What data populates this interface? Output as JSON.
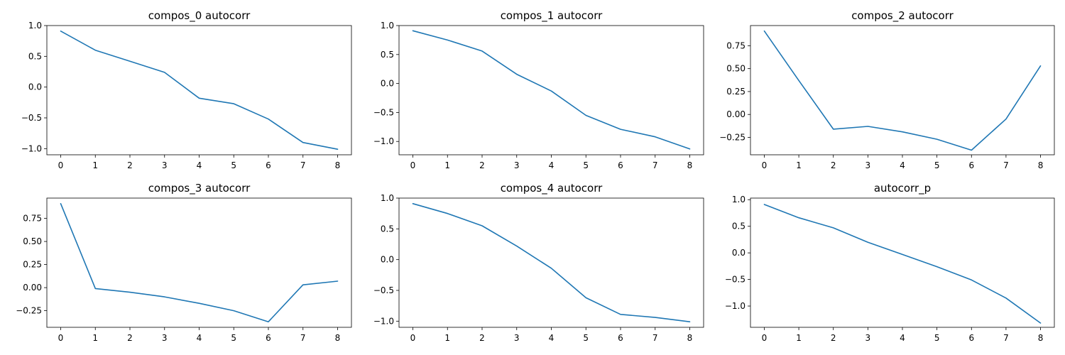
{
  "chart_data": [
    {
      "type": "line",
      "title": "compos_0 autocorr",
      "xlabel": "",
      "ylabel": "",
      "x": [
        0,
        1,
        2,
        3,
        4,
        5,
        6,
        7,
        8
      ],
      "xticks": [
        "0",
        "1",
        "2",
        "3",
        "4",
        "5",
        "6",
        "7",
        "8"
      ],
      "xlim": [
        -0.4,
        8.4
      ],
      "ylim": [
        -1.1,
        1.0
      ],
      "yticks": [
        -1.0,
        -0.5,
        0.0,
        0.5,
        1.0
      ],
      "ytick_labels": [
        "−1.0",
        "−0.5",
        "0.0",
        "0.5",
        "1.0"
      ],
      "series": [
        {
          "values": [
            0.91,
            0.6,
            0.42,
            0.24,
            -0.18,
            -0.27,
            -0.52,
            -0.9,
            -1.01
          ]
        }
      ]
    },
    {
      "type": "line",
      "title": "compos_1 autocorr",
      "xlabel": "",
      "ylabel": "",
      "x": [
        0,
        1,
        2,
        3,
        4,
        5,
        6,
        7,
        8
      ],
      "xticks": [
        "0",
        "1",
        "2",
        "3",
        "4",
        "5",
        "6",
        "7",
        "8"
      ],
      "xlim": [
        -0.4,
        8.4
      ],
      "ylim": [
        -1.23,
        1.0
      ],
      "yticks": [
        -1.0,
        -0.5,
        0.0,
        0.5,
        1.0
      ],
      "ytick_labels": [
        "−1.0",
        "−0.5",
        "0.0",
        "0.5",
        "1.0"
      ],
      "series": [
        {
          "values": [
            0.91,
            0.75,
            0.56,
            0.16,
            -0.13,
            -0.55,
            -0.79,
            -0.92,
            -1.13
          ]
        }
      ]
    },
    {
      "type": "line",
      "title": "compos_2 autocorr",
      "xlabel": "",
      "ylabel": "",
      "x": [
        0,
        1,
        2,
        3,
        4,
        5,
        6,
        7,
        8
      ],
      "xticks": [
        "0",
        "1",
        "2",
        "3",
        "4",
        "5",
        "6",
        "7",
        "8"
      ],
      "xlim": [
        -0.4,
        8.4
      ],
      "ylim": [
        -0.44,
        0.97
      ],
      "yticks": [
        -0.25,
        0.0,
        0.25,
        0.5,
        0.75
      ],
      "ytick_labels": [
        "−0.25",
        "0.00",
        "0.25",
        "0.50",
        "0.75"
      ],
      "series": [
        {
          "values": [
            0.91,
            0.37,
            -0.16,
            -0.13,
            -0.19,
            -0.27,
            -0.39,
            -0.05,
            0.53
          ]
        }
      ]
    },
    {
      "type": "line",
      "title": "compos_3 autocorr",
      "xlabel": "",
      "ylabel": "",
      "x": [
        0,
        1,
        2,
        3,
        4,
        5,
        6,
        7,
        8
      ],
      "xticks": [
        "0",
        "1",
        "2",
        "3",
        "4",
        "5",
        "6",
        "7",
        "8"
      ],
      "xlim": [
        -0.4,
        8.4
      ],
      "ylim": [
        -0.43,
        0.97
      ],
      "yticks": [
        -0.25,
        0.0,
        0.25,
        0.5,
        0.75
      ],
      "ytick_labels": [
        "−0.25",
        "0.00",
        "0.25",
        "0.50",
        "0.75"
      ],
      "series": [
        {
          "values": [
            0.91,
            -0.01,
            -0.05,
            -0.1,
            -0.17,
            -0.25,
            -0.37,
            0.03,
            0.07
          ]
        }
      ]
    },
    {
      "type": "line",
      "title": "compos_4 autocorr",
      "xlabel": "",
      "ylabel": "",
      "x": [
        0,
        1,
        2,
        3,
        4,
        5,
        6,
        7,
        8
      ],
      "xticks": [
        "0",
        "1",
        "2",
        "3",
        "4",
        "5",
        "6",
        "7",
        "8"
      ],
      "xlim": [
        -0.4,
        8.4
      ],
      "ylim": [
        -1.1,
        1.0
      ],
      "yticks": [
        -1.0,
        -0.5,
        0.0,
        0.5,
        1.0
      ],
      "ytick_labels": [
        "−1.0",
        "−0.5",
        "0.0",
        "0.5",
        "1.0"
      ],
      "series": [
        {
          "values": [
            0.91,
            0.75,
            0.55,
            0.22,
            -0.14,
            -0.62,
            -0.89,
            -0.94,
            -1.01
          ]
        }
      ]
    },
    {
      "type": "line",
      "title": "autocorr_p",
      "xlabel": "",
      "ylabel": "",
      "x": [
        0,
        1,
        2,
        3,
        4,
        5,
        6,
        7,
        8
      ],
      "xticks": [
        "0",
        "1",
        "2",
        "3",
        "4",
        "5",
        "6",
        "7",
        "8"
      ],
      "xlim": [
        -0.4,
        8.4
      ],
      "ylim": [
        -1.4,
        1.03
      ],
      "yticks": [
        -1.0,
        -0.5,
        0.0,
        0.5,
        1.0
      ],
      "ytick_labels": [
        "−1.0",
        "−0.5",
        "0.0",
        "0.5",
        "1.0"
      ],
      "series": [
        {
          "values": [
            0.91,
            0.66,
            0.47,
            0.2,
            -0.03,
            -0.26,
            -0.51,
            -0.85,
            -1.32
          ]
        }
      ]
    }
  ],
  "colors": {
    "line": "#1f77b4",
    "axes": "#000000",
    "background": "#ffffff"
  }
}
